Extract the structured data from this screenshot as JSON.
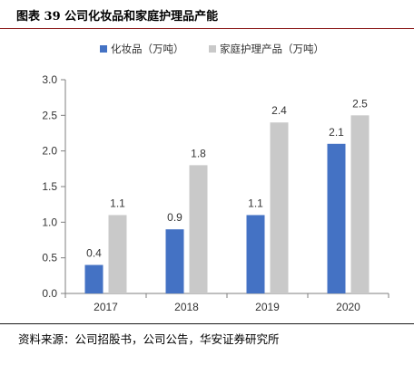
{
  "figure": {
    "title": "图表 39  公司化妆品和家庭护理品产能",
    "source": "资料来源：公司招股书，公司公告，华安证券研究所"
  },
  "chart_data": {
    "type": "bar",
    "categories": [
      "2017",
      "2018",
      "2019",
      "2020"
    ],
    "series": [
      {
        "name": "化妆品（万吨）",
        "values": [
          0.4,
          0.9,
          1.1,
          2.1
        ],
        "color": "#4472c4"
      },
      {
        "name": "家庭护理产品（万吨）",
        "values": [
          1.1,
          1.8,
          2.4,
          2.5
        ],
        "color": "#c9c9c9"
      }
    ],
    "value_labels": [
      [
        "0.4",
        "0.9",
        "1.1",
        "2.1"
      ],
      [
        "1.1",
        "1.8",
        "2.4",
        "2.5"
      ]
    ],
    "ylim": [
      0,
      3.0
    ],
    "yticks": [
      "0.0",
      "0.5",
      "1.0",
      "1.5",
      "2.0",
      "2.5",
      "3.0"
    ],
    "grid": false,
    "legend_position": "top"
  }
}
